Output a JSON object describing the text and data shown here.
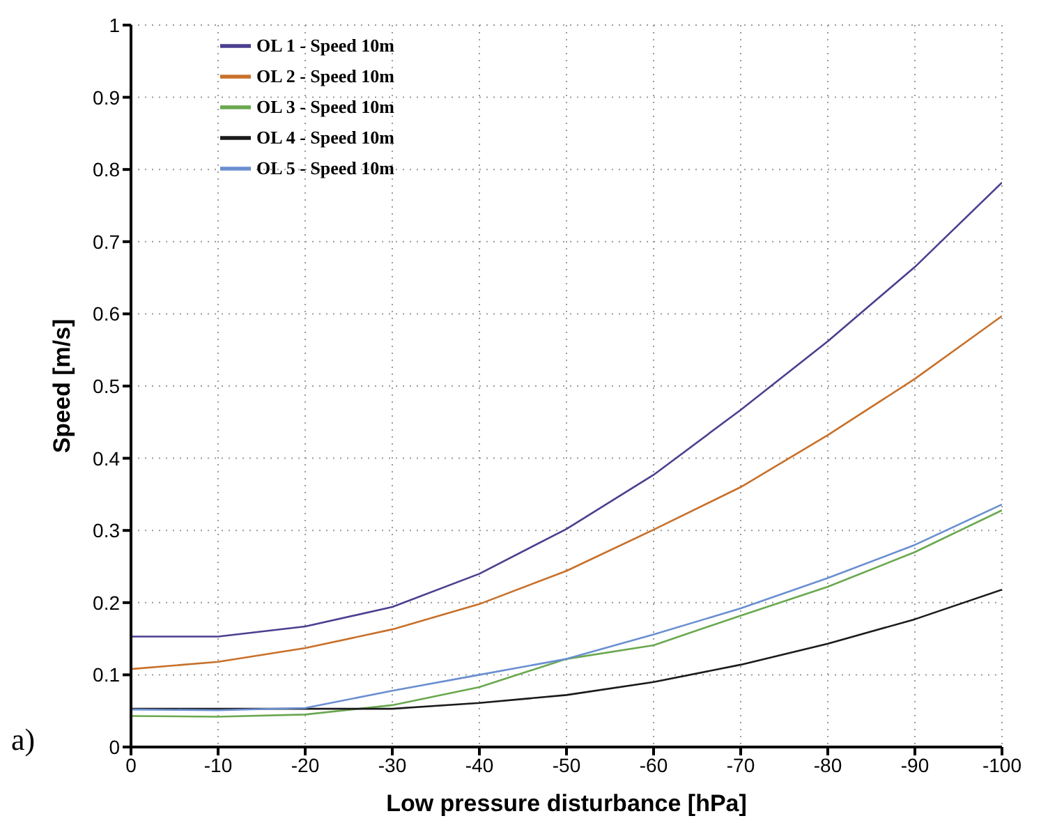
{
  "chart_data": {
    "type": "line",
    "xlabel": "Low pressure disturbance [hPa]",
    "ylabel": "Speed [m/s]",
    "x": [
      0,
      -10,
      -20,
      -30,
      -40,
      -50,
      -60,
      -70,
      -80,
      -90,
      -100
    ],
    "series": [
      {
        "name": "OL 1 - Speed 10m",
        "color": "#4a3f8f",
        "values": [
          0.153,
          0.153,
          0.167,
          0.194,
          0.24,
          0.302,
          0.377,
          0.467,
          0.562,
          0.665,
          0.782
        ]
      },
      {
        "name": "OL 2 - Speed 10m",
        "color": "#c8702a",
        "values": [
          0.108,
          0.118,
          0.137,
          0.163,
          0.198,
          0.244,
          0.301,
          0.36,
          0.432,
          0.51,
          0.597
        ]
      },
      {
        "name": "OL 3 - Speed 10m",
        "color": "#6aa84f",
        "values": [
          0.043,
          0.042,
          0.045,
          0.058,
          0.083,
          0.122,
          0.141,
          0.182,
          0.222,
          0.27,
          0.328
        ]
      },
      {
        "name": "OL 4 - Speed 10m",
        "color": "#1a1a1a",
        "values": [
          0.053,
          0.053,
          0.053,
          0.053,
          0.061,
          0.072,
          0.09,
          0.114,
          0.143,
          0.177,
          0.218
        ]
      },
      {
        "name": "OL 5 - Speed 10m",
        "color": "#6a8fd0",
        "values": [
          0.052,
          0.051,
          0.054,
          0.078,
          0.1,
          0.122,
          0.156,
          0.192,
          0.234,
          0.28,
          0.336
        ]
      }
    ],
    "xlim": [
      0,
      -100
    ],
    "xticks": [
      0,
      -10,
      -20,
      -30,
      -40,
      -50,
      -60,
      -70,
      -80,
      -90,
      -100
    ],
    "ylim": [
      0,
      1
    ],
    "yticks": [
      0,
      0.1,
      0.2,
      0.3,
      0.4,
      0.5,
      0.6,
      0.7,
      0.8,
      0.9,
      1
    ],
    "grid": true,
    "legend": "top left",
    "marker": "none",
    "line_style": "solid",
    "annotations": [
      "a)"
    ]
  }
}
